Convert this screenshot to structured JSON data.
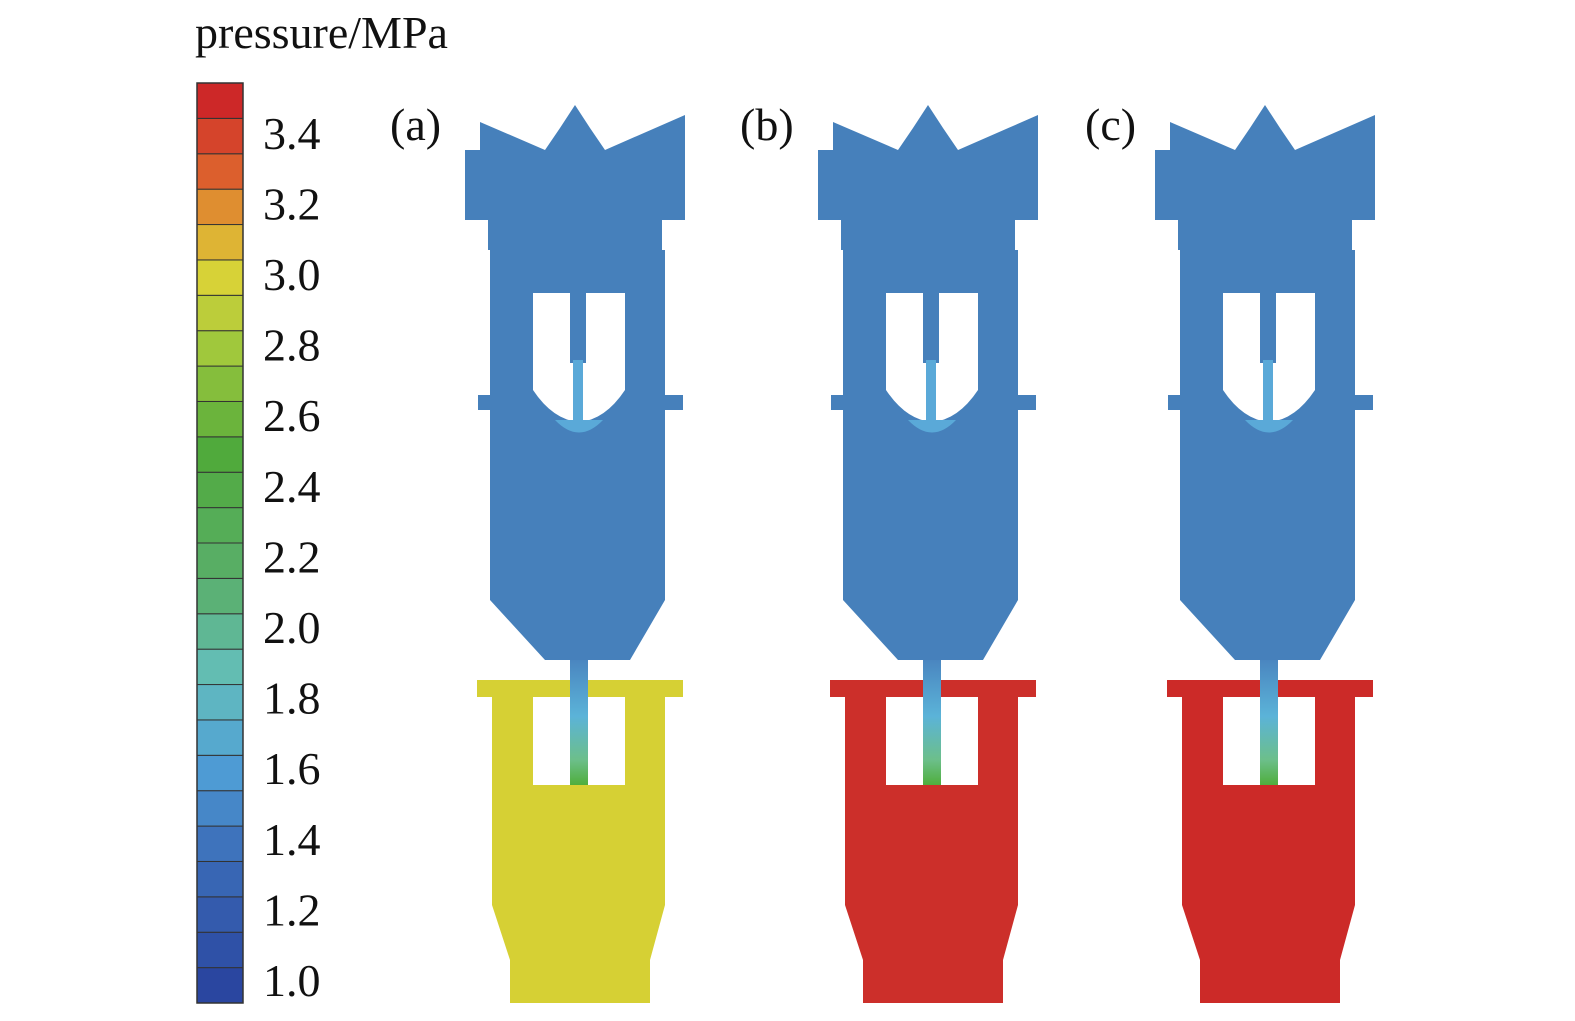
{
  "colorbar": {
    "title": "pressure/MPa",
    "ticks": [
      "1.0",
      "1.2",
      "1.4",
      "1.6",
      "1.8",
      "2.0",
      "2.2",
      "2.4",
      "2.6",
      "2.8",
      "3.0",
      "3.2",
      "3.4"
    ]
  },
  "panels": [
    {
      "label": "(a)"
    },
    {
      "label": "(b)"
    },
    {
      "label": "(c)"
    }
  ]
}
